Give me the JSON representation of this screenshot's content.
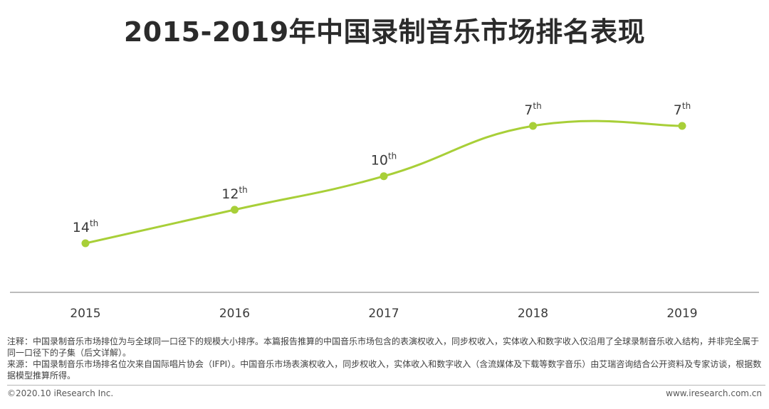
{
  "chart_data": {
    "type": "line",
    "title": "2015-2019年中国录制音乐市场排名表现",
    "xlabel": "",
    "ylabel": "",
    "categories": [
      "2015",
      "2016",
      "2017",
      "2018",
      "2019"
    ],
    "series": [
      {
        "name": "中国录制音乐市场排名",
        "values": [
          14,
          12,
          10,
          7,
          7
        ],
        "labels": [
          {
            "num": "14",
            "suffix": "th"
          },
          {
            "num": "12",
            "suffix": "th"
          },
          {
            "num": "10",
            "suffix": "th"
          },
          {
            "num": "7",
            "suffix": "th"
          },
          {
            "num": "7",
            "suffix": "th"
          }
        ]
      }
    ],
    "ylim": [
      16,
      5
    ],
    "grid": false,
    "legend": "none",
    "colors": {
      "line": "#a8cf38",
      "axis": "#a6a6a6",
      "tick_text": "#3a3a3a",
      "label_text": "#3a3a3a"
    }
  },
  "notes": {
    "note": "注释：中国录制音乐市场排位为与全球同一口径下的规模大小排序。本篇报告推算的中国音乐市场包含的表演权收入，同步权收入，实体收入和数字收入仅沿用了全球录制音乐收入结构，并非完全属于同一口径下的子集（后文详解）。",
    "source": "来源：中国录制音乐市场排名位次来自国际唱片协会（IFPI）。中国音乐市场表演权收入，同步权收入，实体收入和数字收入（含流媒体及下载等数字音乐）由艾瑞咨询结合公开资料及专家访谈，根据数据模型推算所得。"
  },
  "footer": {
    "copyright": "©2020.10 iResearch Inc.",
    "site": "www.iresearch.com.cn"
  }
}
